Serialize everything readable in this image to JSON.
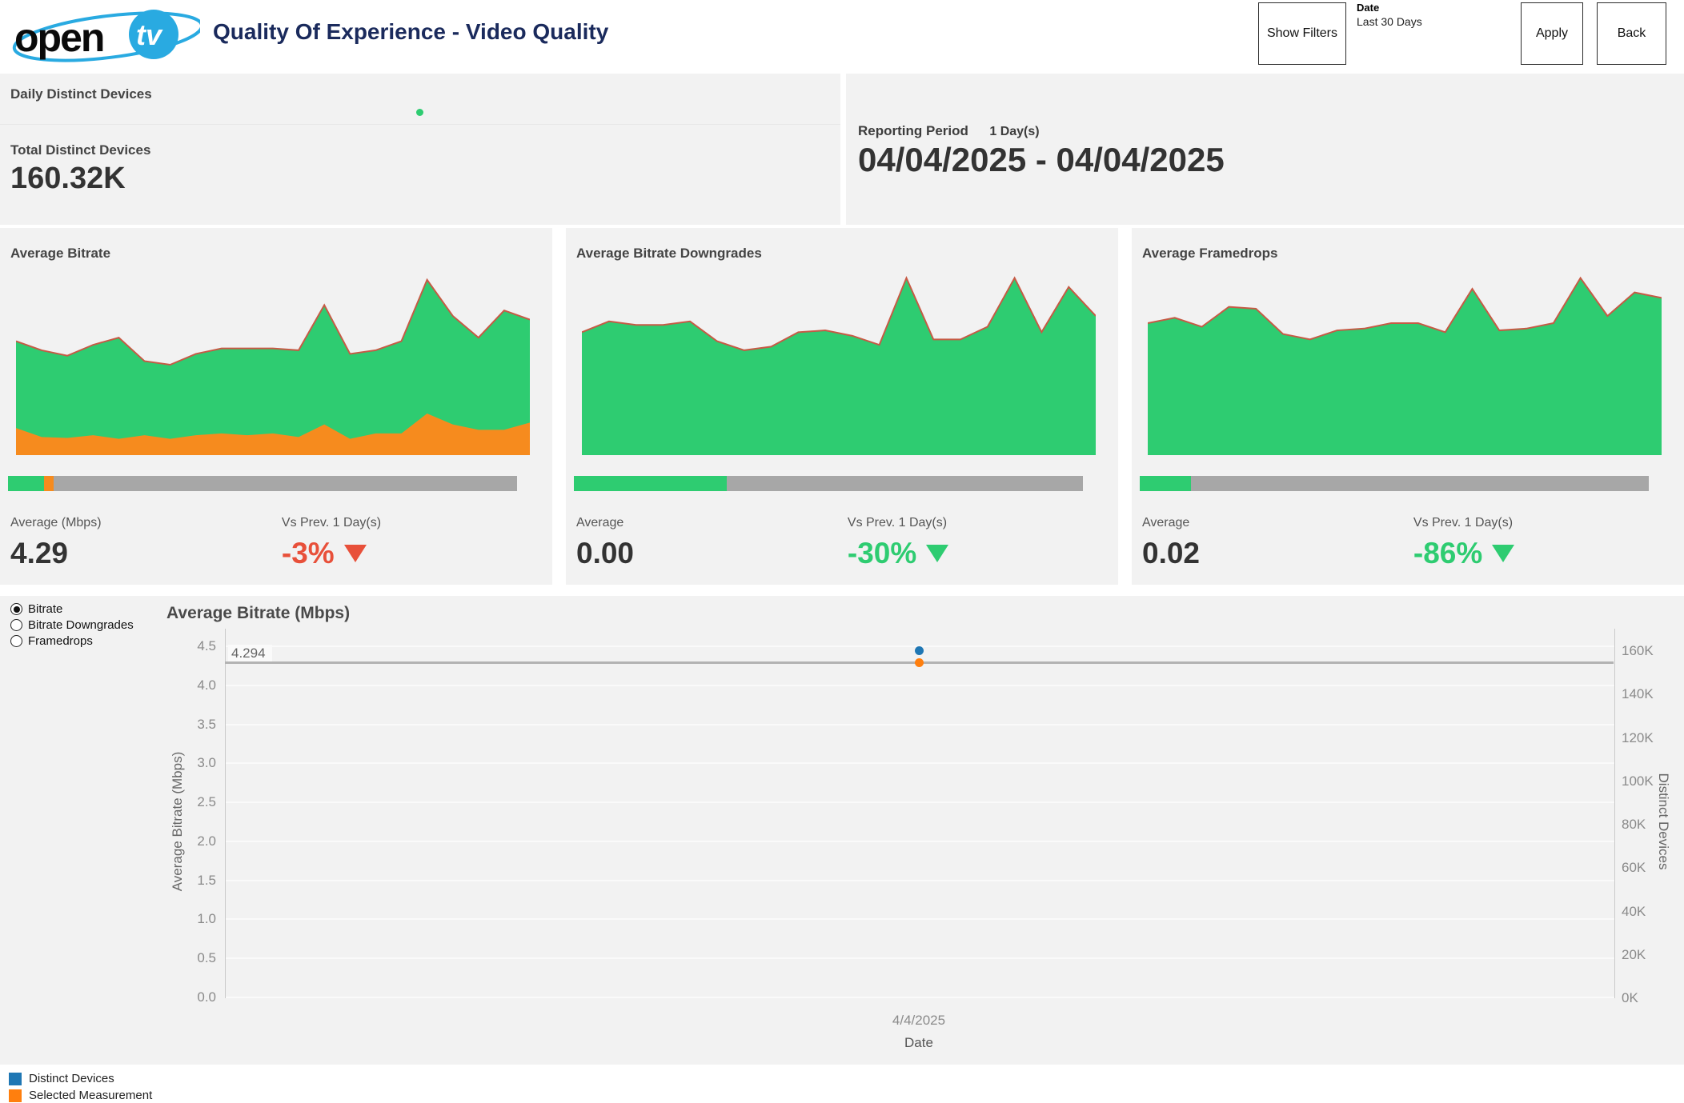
{
  "header": {
    "logo_open": "open",
    "logo_tv": "tv",
    "title": "Quality Of Experience - Video Quality",
    "show_filters_label": "Show Filters",
    "date_filter": {
      "label": "Date",
      "value": "Last 30 Days"
    },
    "apply_label": "Apply",
    "back_label": "Back"
  },
  "devices": {
    "daily_label": "Daily Distinct Devices",
    "total_label": "Total Distinct Devices",
    "total_value": "160.32K",
    "dot_color": "#2ecc71"
  },
  "reporting": {
    "label": "Reporting Period",
    "days": "1 Day(s)",
    "range": "04/04/2025 - 04/04/2025"
  },
  "colors": {
    "brand_navy": "#1a2a5c",
    "brand_blue": "#29aae1",
    "green": "#2ecc71",
    "area_stroke": "#c65a45",
    "orange": "#f68b1e",
    "bar_gray": "#a7a7a7",
    "delta_red": "#e8503a",
    "delta_green": "#2ecc71",
    "dot_blue": "#1f77b4",
    "dot_orange": "#ff7f0e"
  },
  "kpis": [
    {
      "title": "Average Bitrate",
      "avg_label": "Average (Mbps)",
      "avg_value": "4.29",
      "delta_label": "Vs Prev. 1 Day(s)",
      "delta_value": "-3%",
      "delta_color": "#e8503a",
      "bar": {
        "segments": [
          {
            "color": "#2ecc71",
            "pct": 7
          },
          {
            "color": "#f68b1e",
            "pct": 2
          },
          {
            "color": "#a7a7a7",
            "pct": 91
          }
        ]
      }
    },
    {
      "title": "Average Bitrate Downgrades",
      "avg_label": "Average",
      "avg_value": "0.00",
      "delta_label": "Vs Prev. 1 Day(s)",
      "delta_value": "-30%",
      "delta_color": "#2ecc71",
      "bar": {
        "segments": [
          {
            "color": "#2ecc71",
            "pct": 30
          },
          {
            "color": "#a7a7a7",
            "pct": 70
          }
        ]
      }
    },
    {
      "title": "Average Framedrops",
      "avg_label": "Average",
      "avg_value": "0.02",
      "delta_label": "Vs Prev. 1 Day(s)",
      "delta_value": "-86%",
      "delta_color": "#2ecc71",
      "bar": {
        "segments": [
          {
            "color": "#2ecc71",
            "pct": 10
          },
          {
            "color": "#a7a7a7",
            "pct": 90
          }
        ]
      }
    }
  ],
  "selector": {
    "options": [
      {
        "label": "Bitrate",
        "selected": true
      },
      {
        "label": "Bitrate Downgrades",
        "selected": false
      },
      {
        "label": "Framedrops",
        "selected": false
      }
    ]
  },
  "chart_data": [
    {
      "id": "main-scatter",
      "type": "scatter",
      "title": "Average Bitrate (Mbps)",
      "x_label": "Date",
      "x_ticks": [
        "4/4/2025"
      ],
      "left_axis": {
        "label": "Average Bitrate (Mbps)",
        "min": 0,
        "max": 4.5,
        "ticks": [
          {
            "v": 4.5,
            "label": "4.5"
          },
          {
            "v": 4.0,
            "label": "4.0"
          },
          {
            "v": 3.5,
            "label": "3.5"
          },
          {
            "v": 3.0,
            "label": "3.0"
          },
          {
            "v": 2.5,
            "label": "2.5"
          },
          {
            "v": 2.0,
            "label": "2.0"
          },
          {
            "v": 1.5,
            "label": "1.5"
          },
          {
            "v": 1.0,
            "label": "1.0"
          },
          {
            "v": 0.5,
            "label": "0.5"
          },
          {
            "v": 0.0,
            "label": "0.0"
          }
        ]
      },
      "right_axis": {
        "label": "Distinct Devices",
        "min": 0,
        "max": 160,
        "ticks": [
          {
            "v": 160,
            "label": "160K"
          },
          {
            "v": 140,
            "label": "140K"
          },
          {
            "v": 120,
            "label": "120K"
          },
          {
            "v": 100,
            "label": "100K"
          },
          {
            "v": 80,
            "label": "80K"
          },
          {
            "v": 60,
            "label": "60K"
          },
          {
            "v": 40,
            "label": "40K"
          },
          {
            "v": 20,
            "label": "20K"
          },
          {
            "v": 0,
            "label": "0K"
          }
        ]
      },
      "reference_line": {
        "value": 4.294,
        "label": "4.294"
      },
      "series": [
        {
          "name": "Distinct Devices",
          "axis": "right",
          "x": "4/4/2025",
          "y": 160.32,
          "color": "#1f77b4"
        },
        {
          "name": "Selected Measurement",
          "axis": "left",
          "x": "4/4/2025",
          "y": 4.294,
          "color": "#ff7f0e"
        }
      ],
      "grid": true,
      "legend_position": "bottom-left"
    },
    {
      "id": "spark-average-bitrate",
      "type": "area",
      "note": "unlabeled sparkline; values are estimated % of chart height",
      "series": [
        {
          "name": "bitrate-total",
          "color": "#2ecc71",
          "stroke": "#c65a45",
          "values": [
            63,
            58,
            55,
            61,
            65,
            52,
            50,
            56,
            59,
            59,
            59,
            58,
            83,
            56,
            58,
            63,
            97,
            77,
            65,
            80,
            75
          ]
        },
        {
          "name": "selected-measurement",
          "color": "#f68b1e",
          "values": [
            15,
            10,
            9.5,
            11,
            9,
            11,
            9,
            11,
            12,
            11,
            12,
            10,
            17,
            9,
            12,
            12,
            23,
            17,
            14,
            14,
            18
          ]
        }
      ]
    },
    {
      "id": "spark-average-bitrate-downgrades",
      "type": "area",
      "note": "unlabeled sparkline; values are estimated % of chart height",
      "series": [
        {
          "name": "downgrades",
          "color": "#2ecc71",
          "stroke": "#c65a45",
          "values": [
            68,
            74,
            72,
            72,
            74,
            63,
            58,
            60,
            68,
            69,
            66,
            61,
            98,
            64,
            64,
            71,
            98,
            68,
            93,
            77
          ]
        }
      ]
    },
    {
      "id": "spark-average-framedrops",
      "type": "area",
      "note": "unlabeled sparkline; values are estimated % of chart height",
      "series": [
        {
          "name": "framedrops",
          "color": "#2ecc71",
          "stroke": "#c65a45",
          "values": [
            73,
            76,
            71,
            82,
            81,
            67,
            64,
            69,
            70,
            73,
            73,
            68,
            92,
            69,
            70,
            73,
            98,
            77,
            90,
            87
          ]
        }
      ]
    }
  ],
  "legend": {
    "items": [
      {
        "label": "Distinct Devices",
        "color": "#1f77b4"
      },
      {
        "label": "Selected Measurement",
        "color": "#ff7f0e"
      }
    ]
  }
}
